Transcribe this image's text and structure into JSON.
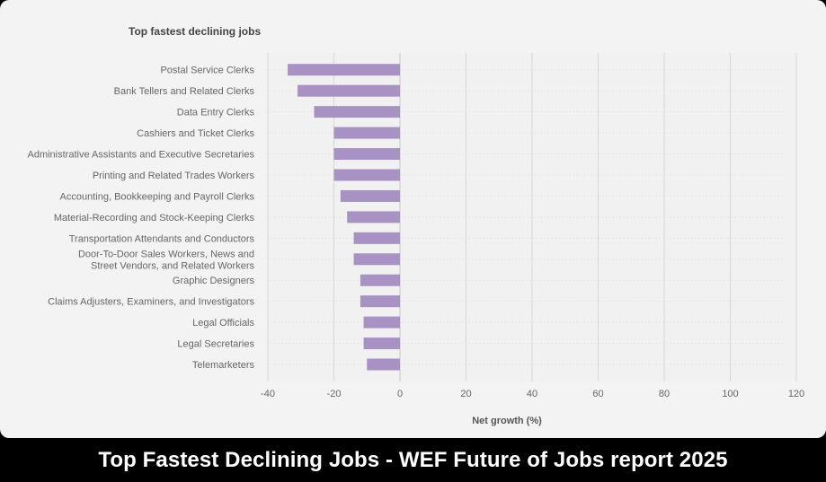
{
  "caption": "Top Fastest Declining Jobs - WEF Future of Jobs report 2025",
  "chart_data": {
    "type": "bar",
    "orientation": "horizontal",
    "title": "Top fastest declining jobs",
    "xlabel": "Net growth (%)",
    "ylabel": "",
    "xlim": [
      -40,
      120
    ],
    "xticks": [
      -40,
      -20,
      0,
      20,
      40,
      60,
      80,
      100,
      120
    ],
    "grid": true,
    "bar_color": "#a892c4",
    "categories": [
      [
        "Postal Service Clerks"
      ],
      [
        "Bank Tellers and Related Clerks"
      ],
      [
        "Data Entry Clerks"
      ],
      [
        "Cashiers and Ticket Clerks"
      ],
      [
        "Administrative Assistants and Executive Secretaries"
      ],
      [
        "Printing and Related Trades Workers"
      ],
      [
        "Accounting, Bookkeeping and Payroll Clerks"
      ],
      [
        "Material-Recording and Stock-Keeping Clerks"
      ],
      [
        "Transportation Attendants and Conductors"
      ],
      [
        "Door-To-Door Sales Workers, News and",
        "Street Vendors, and Related Workers"
      ],
      [
        "Graphic Designers"
      ],
      [
        "Claims Adjusters, Examiners, and Investigators"
      ],
      [
        "Legal Officials"
      ],
      [
        "Legal Secretaries"
      ],
      [
        "Telemarketers"
      ]
    ],
    "values": [
      -34,
      -31,
      -26,
      -20,
      -20,
      -20,
      -18,
      -16,
      -14,
      -14,
      -12,
      -12,
      -11,
      -11,
      -10
    ]
  }
}
